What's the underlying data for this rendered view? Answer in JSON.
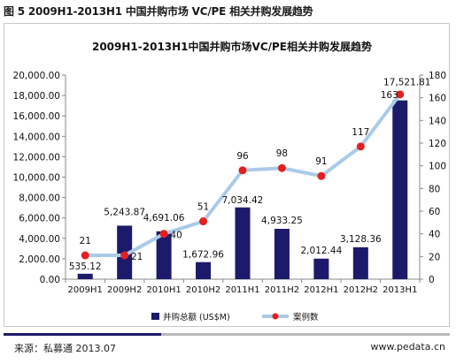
{
  "figure_label": "图 5 2009H1-2013H1 中国并购市场 VC/PE 相关并购发展趋势",
  "source": "来源：私募通 2013.07",
  "website": "www.pedata.cn",
  "colors": {
    "bar": "#1c1a6b",
    "line": "#a9cbe8",
    "marker": "#e32020",
    "footer_accent": "#1c1a6b"
  },
  "chart_data": {
    "type": "bar",
    "title": "2009H1-2013H1中国并购市场VC/PE相关并购发展趋势",
    "categories": [
      "2009H1",
      "2009H2",
      "2010H1",
      "2010H2",
      "2011H1",
      "2011H2",
      "2012H1",
      "2012H2",
      "2013H1"
    ],
    "series": [
      {
        "name": "并购总额 (US$M)",
        "type": "bar",
        "axis": "left",
        "values": [
          535.12,
          5243.87,
          4691.06,
          1672.96,
          7034.42,
          4933.25,
          2012.44,
          3128.36,
          17521.81
        ],
        "labels": [
          "535.12",
          "5,243.87",
          "4,691.06",
          "1,672.96",
          "7,034.42",
          "4,933.25",
          "2,012.44",
          "3,128.36",
          "17,521.81"
        ]
      },
      {
        "name": "案例数",
        "type": "line",
        "axis": "right",
        "values": [
          21,
          21,
          40,
          51,
          96,
          98,
          91,
          117,
          163
        ],
        "labels": [
          "21",
          "21",
          "40",
          "51",
          "96",
          "98",
          "91",
          "117",
          "163"
        ]
      }
    ],
    "y_left": {
      "min": 0,
      "max": 20000,
      "step": 2000,
      "tick_labels": [
        "0.00",
        "2,000.00",
        "4,000.00",
        "6,000.00",
        "8,000.00",
        "10,000.00",
        "12,000.00",
        "14,000.00",
        "16,000.00",
        "18,000.00",
        "20,000.00"
      ]
    },
    "y_right": {
      "min": 0,
      "max": 180,
      "step": 20,
      "tick_labels": [
        "0",
        "20",
        "40",
        "60",
        "80",
        "100",
        "120",
        "140",
        "160",
        "180"
      ]
    },
    "grid": false,
    "legend": "bottom"
  }
}
